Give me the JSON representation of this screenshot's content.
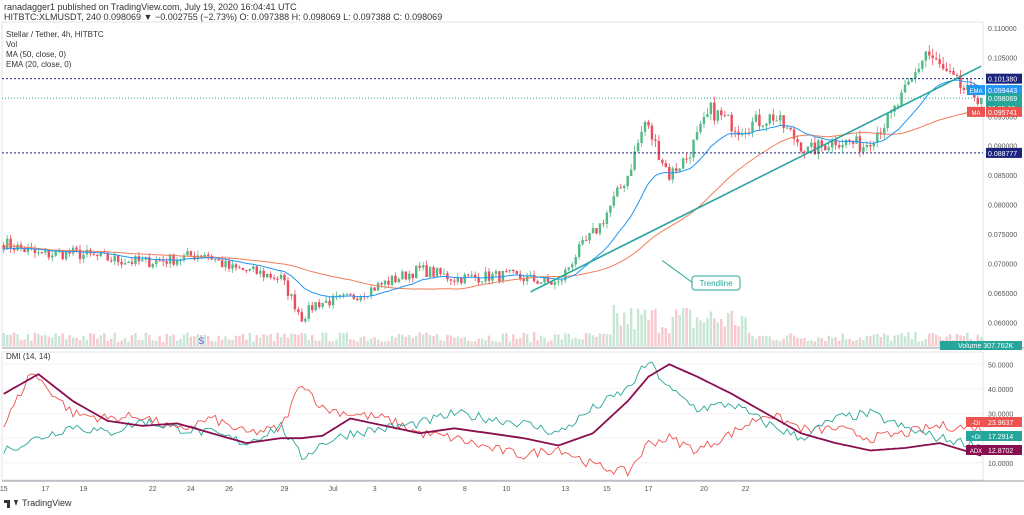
{
  "header": {
    "publisher": "ranadagger1 published on TradingView.com, July 19, 2020 16:04:41 UTC",
    "ohlc": "HITBTC:XLMUSDT, 240  0.098069  ▼ −0.002755 (−2.73%)  O: 0.097388  H: 0.098069  L: 0.097388  C: 0.098069"
  },
  "legend": {
    "title": "Stellar / Tether, 4h, HITBTC",
    "vol": "Vol",
    "ma": "MA (50, close, 0)",
    "ema": "EMA (20, close, 0)"
  },
  "dmi_label": "DMI (14, 14)",
  "footer": {
    "brand": "TradingView"
  },
  "annotation": "Trendline",
  "s_marker": "S",
  "colors": {
    "up": "#53b987",
    "down": "#eb4d5c",
    "ema": "#2196f3",
    "ma": "#f07e5a",
    "trend": "#26a69a",
    "adx": "#880e4f",
    "pdi": "#26a69a",
    "mdi": "#ef5350",
    "dotted": "#1a237e"
  },
  "chart_data": [
    {
      "type": "candlestick",
      "title": "Stellar / Tether, 4h, HITBTC",
      "ylim": [
        0.056,
        0.111
      ],
      "y_ticks": [
        "0.110000",
        "0.105000",
        "0.100000",
        "0.095000",
        "0.090000",
        "0.085000",
        "0.080000",
        "0.075000",
        "0.070000",
        "0.065000",
        "0.060000"
      ],
      "x_labels": [
        "15",
        "17",
        "19",
        "22",
        "24",
        "26",
        "29",
        "Jul",
        "3",
        "6",
        "8",
        "10",
        "13",
        "15",
        "17",
        "20",
        "22"
      ],
      "price_labels": [
        {
          "name": "resistance",
          "text": "0.101380",
          "value": 0.10138,
          "bg": "#1a237e"
        },
        {
          "name": "ema",
          "text": "EMA",
          "value": 0.099443,
          "bg": "#2196f3",
          "val_text": "0.099443"
        },
        {
          "name": "last",
          "text": "0.098069",
          "value": 0.098069,
          "bg": "#26a69a",
          "countdown": "03:55:22"
        },
        {
          "name": "ma",
          "text": "MA",
          "value": 0.095741,
          "bg": "#ef5350",
          "val_text": "0.095741"
        },
        {
          "name": "support",
          "text": "0.088777",
          "value": 0.088777,
          "bg": "#1a237e"
        }
      ],
      "volume_label": "Volume",
      "volume_value": "307.762K",
      "anchors": [
        [
          0,
          0.0735
        ],
        [
          10,
          0.0715
        ],
        [
          20,
          0.0718
        ],
        [
          30,
          0.0708
        ],
        [
          40,
          0.0702
        ],
        [
          50,
          0.0708
        ],
        [
          58,
          0.0718
        ],
        [
          65,
          0.0692
        ],
        [
          72,
          0.0686
        ],
        [
          80,
          0.0675
        ],
        [
          86,
          0.0608
        ],
        [
          90,
          0.0632
        ],
        [
          100,
          0.0642
        ],
        [
          110,
          0.0667
        ],
        [
          120,
          0.069
        ],
        [
          130,
          0.0675
        ],
        [
          145,
          0.068
        ],
        [
          160,
          0.0665
        ],
        [
          165,
          0.0715
        ],
        [
          172,
          0.0765
        ],
        [
          180,
          0.085
        ],
        [
          185,
          0.094
        ],
        [
          192,
          0.085
        ],
        [
          197,
          0.088
        ],
        [
          204,
          0.096
        ],
        [
          212,
          0.093
        ],
        [
          222,
          0.095
        ],
        [
          232,
          0.089
        ],
        [
          240,
          0.091
        ],
        [
          248,
          0.09
        ],
        [
          256,
          0.095
        ],
        [
          262,
          0.101
        ],
        [
          266,
          0.106
        ],
        [
          272,
          0.102
        ],
        [
          278,
          0.099
        ],
        [
          282,
          0.0981
        ]
      ]
    },
    {
      "type": "line",
      "title": "DMI (14, 14)",
      "ylim": [
        3,
        55
      ],
      "y_ticks": [
        "50.0000",
        "40.0000",
        "30.0000",
        "20.0000",
        "10.0000"
      ],
      "series": [
        {
          "name": "-DI",
          "value_label": "23.9637",
          "anchors": [
            [
              0,
              25
            ],
            [
              8,
              47
            ],
            [
              20,
              30
            ],
            [
              30,
              28
            ],
            [
              40,
              29
            ],
            [
              50,
              23
            ],
            [
              60,
              28
            ],
            [
              70,
              22
            ],
            [
              80,
              24
            ],
            [
              86,
              43
            ],
            [
              92,
              32
            ],
            [
              100,
              30
            ],
            [
              110,
              28
            ],
            [
              120,
              22
            ],
            [
              130,
              20
            ],
            [
              140,
              16
            ],
            [
              150,
              13
            ],
            [
              160,
              16
            ],
            [
              170,
              9
            ],
            [
              180,
              6
            ],
            [
              186,
              18
            ],
            [
              192,
              20
            ],
            [
              200,
              15
            ],
            [
              210,
              22
            ],
            [
              220,
              30
            ],
            [
              232,
              23
            ],
            [
              240,
              24
            ],
            [
              250,
              20
            ],
            [
              260,
              22
            ],
            [
              270,
              25
            ],
            [
              282,
              24
            ]
          ]
        },
        {
          "name": "+DI",
          "value_label": "17.2914",
          "anchors": [
            [
              0,
              15
            ],
            [
              10,
              20
            ],
            [
              20,
              25
            ],
            [
              30,
              22
            ],
            [
              40,
              27
            ],
            [
              50,
              24
            ],
            [
              60,
              22
            ],
            [
              70,
              18
            ],
            [
              80,
              25
            ],
            [
              86,
              12
            ],
            [
              92,
              18
            ],
            [
              100,
              22
            ],
            [
              110,
              24
            ],
            [
              120,
              26
            ],
            [
              130,
              30
            ],
            [
              140,
              28
            ],
            [
              150,
              26
            ],
            [
              160,
              22
            ],
            [
              170,
              32
            ],
            [
              180,
              40
            ],
            [
              186,
              51
            ],
            [
              192,
              40
            ],
            [
              200,
              32
            ],
            [
              210,
              34
            ],
            [
              220,
              26
            ],
            [
              230,
              20
            ],
            [
              240,
              28
            ],
            [
              250,
              30
            ],
            [
              260,
              24
            ],
            [
              270,
              20
            ],
            [
              282,
              17
            ]
          ]
        },
        {
          "name": "ADX",
          "value_label": "12.8702",
          "anchors": [
            [
              0,
              38
            ],
            [
              10,
              46
            ],
            [
              20,
              35
            ],
            [
              30,
              27
            ],
            [
              40,
              25
            ],
            [
              50,
              26
            ],
            [
              60,
              22
            ],
            [
              70,
              18
            ],
            [
              80,
              20
            ],
            [
              86,
              20
            ],
            [
              92,
              21
            ],
            [
              100,
              28
            ],
            [
              110,
              25
            ],
            [
              120,
              22
            ],
            [
              130,
              24
            ],
            [
              140,
              22
            ],
            [
              150,
              20
            ],
            [
              160,
              17
            ],
            [
              170,
              22
            ],
            [
              180,
              35
            ],
            [
              186,
              45
            ],
            [
              192,
              50
            ],
            [
              200,
              45
            ],
            [
              210,
              38
            ],
            [
              220,
              30
            ],
            [
              230,
              22
            ],
            [
              240,
              18
            ],
            [
              250,
              15
            ],
            [
              260,
              16
            ],
            [
              270,
              18
            ],
            [
              282,
              12.9
            ]
          ]
        }
      ]
    }
  ]
}
